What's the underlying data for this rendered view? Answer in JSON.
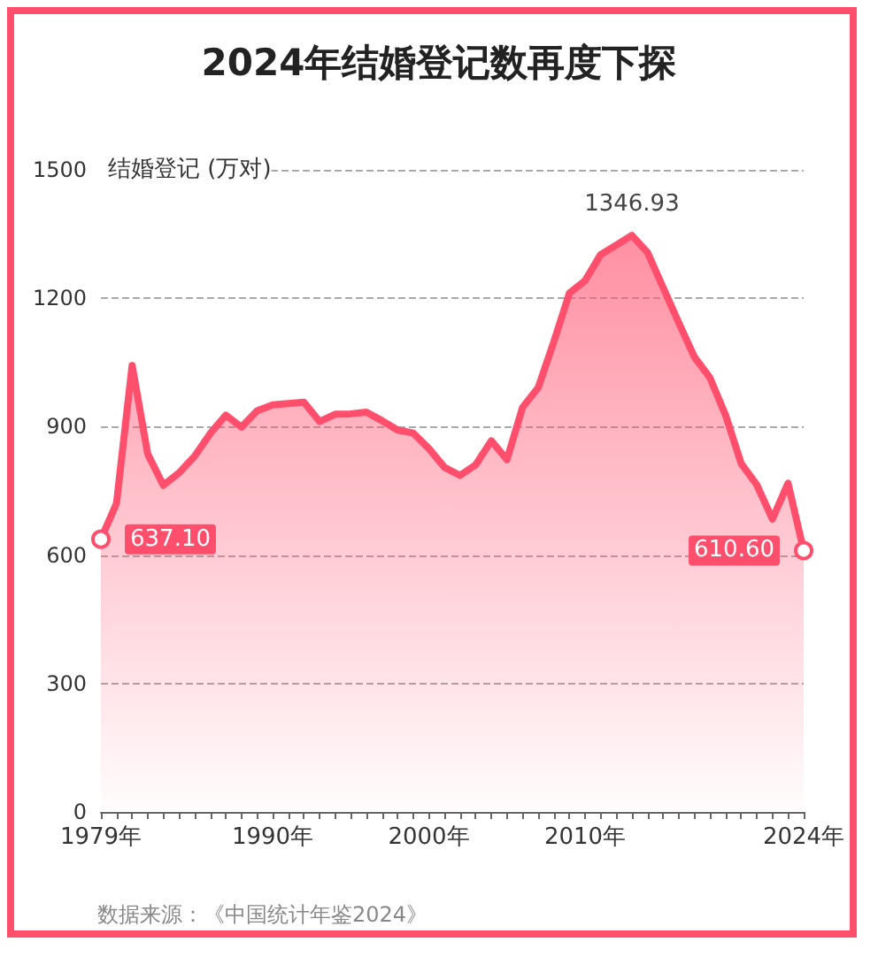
{
  "chart_data": {
    "type": "area",
    "title": "2024年结婚登记数再度下探",
    "ylabel": "结婚登记 (万对)",
    "annotations": [
      "数据来源：《中国统计年鉴2024》"
    ],
    "x": [
      1979,
      1980,
      1981,
      1982,
      1983,
      1984,
      1985,
      1986,
      1987,
      1988,
      1989,
      1990,
      1991,
      1992,
      1993,
      1994,
      1995,
      1996,
      1997,
      1998,
      1999,
      2000,
      2001,
      2002,
      2003,
      2004,
      2005,
      2006,
      2007,
      2008,
      2009,
      2010,
      2011,
      2012,
      2013,
      2014,
      2015,
      2016,
      2017,
      2018,
      2019,
      2020,
      2021,
      2022,
      2023,
      2024
    ],
    "series": [
      {
        "color": "#ff4f6d",
        "values": [
          637.1,
          721,
          1043,
          836,
          763,
          792,
          831,
          884,
          927,
          899,
          937,
          951,
          954,
          957,
          912,
          929,
          930,
          934,
          914,
          892,
          885,
          849,
          805,
          786,
          811,
          867,
          823,
          945,
          991,
          1098,
          1212,
          1241,
          1302,
          1324,
          1346.93,
          1307,
          1225,
          1143,
          1063,
          1014,
          927,
          814,
          764,
          684,
          768,
          610.6
        ],
        "value_labels": [
          "637.10",
          null,
          null,
          null,
          null,
          null,
          null,
          null,
          null,
          null,
          null,
          null,
          null,
          null,
          null,
          null,
          null,
          null,
          null,
          null,
          null,
          null,
          null,
          null,
          null,
          null,
          null,
          null,
          null,
          null,
          null,
          null,
          null,
          null,
          "1346.93",
          null,
          null,
          null,
          null,
          null,
          null,
          null,
          null,
          null,
          null,
          "610.60"
        ]
      }
    ],
    "xlim": [
      1979,
      2024
    ],
    "xticks": [
      {
        "value": 1979,
        "label": "1979年"
      },
      {
        "value": 1980,
        "label": null
      },
      {
        "value": 1981,
        "label": null
      },
      {
        "value": 1982,
        "label": null
      },
      {
        "value": 1983,
        "label": null
      },
      {
        "value": 1984,
        "label": null
      },
      {
        "value": 1985,
        "label": null
      },
      {
        "value": 1986,
        "label": null
      },
      {
        "value": 1987,
        "label": null
      },
      {
        "value": 1988,
        "label": null
      },
      {
        "value": 1989,
        "label": null
      },
      {
        "value": 1990,
        "label": "1990年"
      },
      {
        "value": 1991,
        "label": null
      },
      {
        "value": 1992,
        "label": null
      },
      {
        "value": 1993,
        "label": null
      },
      {
        "value": 1994,
        "label": null
      },
      {
        "value": 1995,
        "label": null
      },
      {
        "value": 1996,
        "label": null
      },
      {
        "value": 1997,
        "label": null
      },
      {
        "value": 1998,
        "label": null
      },
      {
        "value": 1999,
        "label": null
      },
      {
        "value": 2000,
        "label": "2000年"
      },
      {
        "value": 2001,
        "label": null
      },
      {
        "value": 2002,
        "label": null
      },
      {
        "value": 2003,
        "label": null
      },
      {
        "value": 2004,
        "label": null
      },
      {
        "value": 2005,
        "label": null
      },
      {
        "value": 2006,
        "label": null
      },
      {
        "value": 2007,
        "label": null
      },
      {
        "value": 2008,
        "label": null
      },
      {
        "value": 2009,
        "label": null
      },
      {
        "value": 2010,
        "label": "2010年"
      },
      {
        "value": 2011,
        "label": null
      },
      {
        "value": 2012,
        "label": null
      },
      {
        "value": 2013,
        "label": null
      },
      {
        "value": 2014,
        "label": null
      },
      {
        "value": 2015,
        "label": null
      },
      {
        "value": 2016,
        "label": null
      },
      {
        "value": 2017,
        "label": null
      },
      {
        "value": 2018,
        "label": null
      },
      {
        "value": 2019,
        "label": null
      },
      {
        "value": 2020,
        "label": null
      },
      {
        "value": 2021,
        "label": null
      },
      {
        "value": 2022,
        "label": null
      },
      {
        "value": 2023,
        "label": null
      },
      {
        "value": 2024,
        "label": "2024年"
      }
    ],
    "ylim": [
      0,
      1500
    ],
    "yticks": [
      0,
      300,
      600,
      900,
      1200,
      1500
    ],
    "grid": "y"
  }
}
